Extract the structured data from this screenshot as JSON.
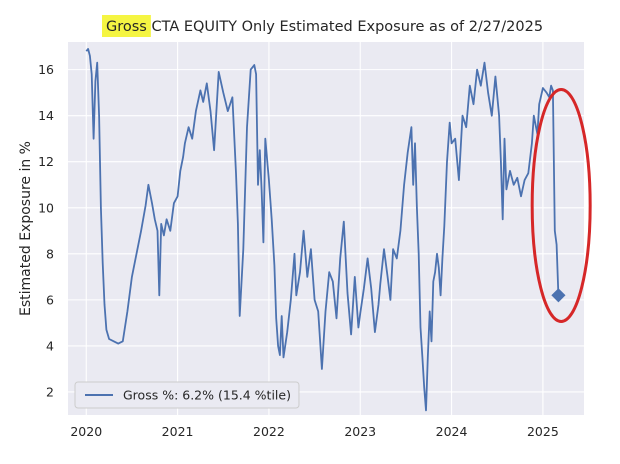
{
  "chart_data": {
    "type": "line",
    "title_highlight": "Gross",
    "title_rest": " CTA EQUITY Only Estimated Exposure as of 2/27/2025",
    "xlabel": "",
    "ylabel": "Estimated Exposure in %",
    "xlim": [
      2019.8,
      2025.45
    ],
    "ylim": [
      1.0,
      17.2
    ],
    "x_ticks": [
      {
        "value": 2020,
        "label": "2020"
      },
      {
        "value": 2021,
        "label": "2021"
      },
      {
        "value": 2022,
        "label": "2022"
      },
      {
        "value": 2023,
        "label": "2023"
      },
      {
        "value": 2024,
        "label": "2024"
      },
      {
        "value": 2025,
        "label": "2025"
      }
    ],
    "y_ticks": [
      {
        "value": 2,
        "label": "2"
      },
      {
        "value": 4,
        "label": "4"
      },
      {
        "value": 6,
        "label": "6"
      },
      {
        "value": 8,
        "label": "8"
      },
      {
        "value": 10,
        "label": "10"
      },
      {
        "value": 12,
        "label": "12"
      },
      {
        "value": 14,
        "label": "14"
      },
      {
        "value": 16,
        "label": "16"
      }
    ],
    "grid": true,
    "legend_position": "bottom-left",
    "legend_label": "Gross %:  6.2% (15.4 %tile)",
    "colors": {
      "series": "#4c72b0",
      "plot_background": "#eaeaf2",
      "grid": "#ffffff",
      "title_highlight": "#f5f542",
      "annotation_ellipse": "#d62728"
    },
    "series": [
      {
        "name": "Gross %",
        "points": [
          [
            2020.0,
            16.8
          ],
          [
            2020.02,
            16.9
          ],
          [
            2020.04,
            16.6
          ],
          [
            2020.06,
            15.8
          ],
          [
            2020.08,
            13.0
          ],
          [
            2020.1,
            15.5
          ],
          [
            2020.12,
            16.3
          ],
          [
            2020.14,
            14.0
          ],
          [
            2020.16,
            10.0
          ],
          [
            2020.18,
            7.6
          ],
          [
            2020.2,
            5.8
          ],
          [
            2020.22,
            4.7
          ],
          [
            2020.25,
            4.3
          ],
          [
            2020.3,
            4.2
          ],
          [
            2020.35,
            4.1
          ],
          [
            2020.4,
            4.2
          ],
          [
            2020.45,
            5.5
          ],
          [
            2020.5,
            7.0
          ],
          [
            2020.55,
            8.0
          ],
          [
            2020.6,
            9.0
          ],
          [
            2020.65,
            10.1
          ],
          [
            2020.68,
            11.0
          ],
          [
            2020.72,
            10.2
          ],
          [
            2020.75,
            9.5
          ],
          [
            2020.78,
            9.0
          ],
          [
            2020.8,
            6.2
          ],
          [
            2020.82,
            9.3
          ],
          [
            2020.85,
            8.8
          ],
          [
            2020.88,
            9.5
          ],
          [
            2020.92,
            9.0
          ],
          [
            2020.96,
            10.2
          ],
          [
            2021.0,
            10.5
          ],
          [
            2021.03,
            11.6
          ],
          [
            2021.06,
            12.2
          ],
          [
            2021.08,
            12.8
          ],
          [
            2021.12,
            13.5
          ],
          [
            2021.16,
            13.0
          ],
          [
            2021.2,
            14.2
          ],
          [
            2021.25,
            15.1
          ],
          [
            2021.28,
            14.6
          ],
          [
            2021.32,
            15.4
          ],
          [
            2021.36,
            14.2
          ],
          [
            2021.4,
            12.5
          ],
          [
            2021.45,
            15.9
          ],
          [
            2021.5,
            15.0
          ],
          [
            2021.55,
            14.2
          ],
          [
            2021.6,
            14.8
          ],
          [
            2021.64,
            11.5
          ],
          [
            2021.66,
            9.3
          ],
          [
            2021.68,
            5.3
          ],
          [
            2021.72,
            8.2
          ],
          [
            2021.76,
            13.5
          ],
          [
            2021.8,
            16.0
          ],
          [
            2021.84,
            16.2
          ],
          [
            2021.86,
            15.8
          ],
          [
            2021.88,
            11.0
          ],
          [
            2021.9,
            12.5
          ],
          [
            2021.92,
            10.8
          ],
          [
            2021.94,
            8.5
          ],
          [
            2021.96,
            13.0
          ],
          [
            2022.0,
            11.2
          ],
          [
            2022.03,
            9.5
          ],
          [
            2022.06,
            7.5
          ],
          [
            2022.08,
            5.2
          ],
          [
            2022.1,
            4.0
          ],
          [
            2022.12,
            3.6
          ],
          [
            2022.14,
            5.3
          ],
          [
            2022.16,
            3.5
          ],
          [
            2022.2,
            4.6
          ],
          [
            2022.24,
            6.0
          ],
          [
            2022.28,
            8.0
          ],
          [
            2022.3,
            6.2
          ],
          [
            2022.34,
            7.2
          ],
          [
            2022.38,
            9.0
          ],
          [
            2022.42,
            7.0
          ],
          [
            2022.46,
            8.2
          ],
          [
            2022.5,
            6.0
          ],
          [
            2022.54,
            5.5
          ],
          [
            2022.58,
            3.0
          ],
          [
            2022.62,
            5.5
          ],
          [
            2022.66,
            7.2
          ],
          [
            2022.7,
            6.8
          ],
          [
            2022.74,
            5.2
          ],
          [
            2022.78,
            7.8
          ],
          [
            2022.82,
            9.4
          ],
          [
            2022.86,
            6.3
          ],
          [
            2022.9,
            4.5
          ],
          [
            2022.94,
            7.0
          ],
          [
            2022.98,
            4.8
          ],
          [
            2023.0,
            5.4
          ],
          [
            2023.04,
            6.5
          ],
          [
            2023.08,
            7.8
          ],
          [
            2023.12,
            6.5
          ],
          [
            2023.16,
            4.6
          ],
          [
            2023.2,
            5.8
          ],
          [
            2023.22,
            6.7
          ],
          [
            2023.26,
            8.2
          ],
          [
            2023.3,
            7.0
          ],
          [
            2023.33,
            6.0
          ],
          [
            2023.36,
            8.2
          ],
          [
            2023.4,
            7.8
          ],
          [
            2023.44,
            9.0
          ],
          [
            2023.48,
            11.0
          ],
          [
            2023.52,
            12.4
          ],
          [
            2023.56,
            13.5
          ],
          [
            2023.58,
            11.0
          ],
          [
            2023.6,
            12.8
          ],
          [
            2023.62,
            10.0
          ],
          [
            2023.64,
            8.0
          ],
          [
            2023.66,
            4.8
          ],
          [
            2023.68,
            3.5
          ],
          [
            2023.7,
            2.2
          ],
          [
            2023.72,
            1.2
          ],
          [
            2023.74,
            3.5
          ],
          [
            2023.76,
            5.5
          ],
          [
            2023.78,
            4.2
          ],
          [
            2023.8,
            6.8
          ],
          [
            2023.82,
            7.2
          ],
          [
            2023.84,
            8.0
          ],
          [
            2023.86,
            7.4
          ],
          [
            2023.88,
            6.2
          ],
          [
            2023.9,
            7.8
          ],
          [
            2023.92,
            9.2
          ],
          [
            2023.95,
            12.0
          ],
          [
            2023.98,
            13.7
          ],
          [
            2024.0,
            12.8
          ],
          [
            2024.04,
            13.0
          ],
          [
            2024.08,
            11.2
          ],
          [
            2024.12,
            14.0
          ],
          [
            2024.16,
            13.5
          ],
          [
            2024.2,
            15.3
          ],
          [
            2024.24,
            14.5
          ],
          [
            2024.28,
            16.0
          ],
          [
            2024.32,
            15.3
          ],
          [
            2024.36,
            16.3
          ],
          [
            2024.4,
            15.0
          ],
          [
            2024.44,
            14.0
          ],
          [
            2024.48,
            15.7
          ],
          [
            2024.52,
            14.0
          ],
          [
            2024.54,
            12.0
          ],
          [
            2024.56,
            9.5
          ],
          [
            2024.58,
            13.0
          ],
          [
            2024.6,
            10.8
          ],
          [
            2024.64,
            11.6
          ],
          [
            2024.68,
            11.0
          ],
          [
            2024.72,
            11.3
          ],
          [
            2024.76,
            10.5
          ],
          [
            2024.8,
            11.2
          ],
          [
            2024.84,
            11.5
          ],
          [
            2024.88,
            12.8
          ],
          [
            2024.9,
            14.0
          ],
          [
            2024.94,
            13.2
          ],
          [
            2024.96,
            14.5
          ],
          [
            2025.0,
            15.2
          ],
          [
            2025.04,
            15.0
          ],
          [
            2025.07,
            14.8
          ],
          [
            2025.09,
            15.3
          ],
          [
            2025.11,
            15.1
          ],
          [
            2025.13,
            9.0
          ],
          [
            2025.15,
            8.4
          ],
          [
            2025.17,
            6.2
          ]
        ]
      }
    ],
    "last_point": {
      "x": 2025.17,
      "y": 6.2
    }
  }
}
